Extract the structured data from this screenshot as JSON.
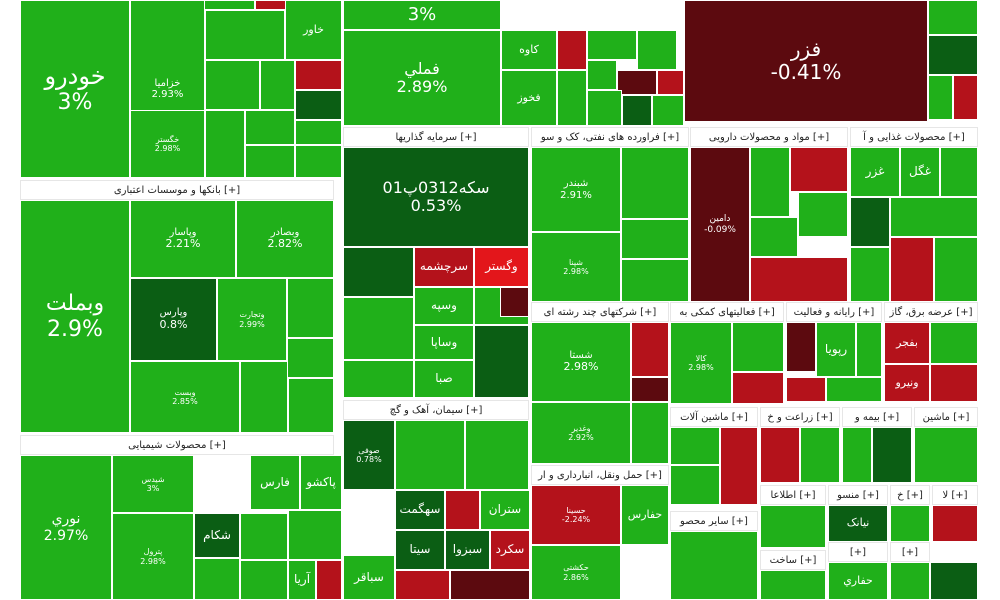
{
  "colors": {
    "bright_green": "#20b01a",
    "mid_green": "#168f17",
    "dark_green": "#0b5e14",
    "bright_red": "#e3161b",
    "mid_red": "#b4121b",
    "dark_red": "#5c0a0f",
    "background": "#ffffff"
  },
  "chart_data": {
    "type": "treemap",
    "sectors": [
      {
        "label": "[+] بانکها و موسسات اعتباری"
      },
      {
        "label": "[+] محصولات شیمیایی"
      },
      {
        "label": "[+] سرمایه گذاریها"
      },
      {
        "label": "[+] سیمان، آهک و گچ"
      },
      {
        "label": "[+] فراورده های نفتی، کک و سو"
      },
      {
        "label": "[+] مواد و محصولات دارویی"
      },
      {
        "label": "[+] محصولات غذایی و آ"
      },
      {
        "label": "[+] شرکتهای چند رشته ای"
      },
      {
        "label": "[+] فعالیتهای کمکی به"
      },
      {
        "label": "[+] رایانه و فعالیت"
      },
      {
        "label": "[+] عرضه برق، گاز"
      },
      {
        "label": "[+] حمل ونقل، انبارداری و ار"
      },
      {
        "label": "[+] ماشین آلات"
      },
      {
        "label": "[+] زراعت و خ"
      },
      {
        "label": "[+] بیمه و"
      },
      {
        "label": "[+] ماشین"
      },
      {
        "label": "[+] ساير محصو"
      },
      {
        "label": "[+] اطلاعا"
      },
      {
        "label": "[+] منسو"
      },
      {
        "label": "[+] خ"
      },
      {
        "label": "[+] لا"
      },
      {
        "label": "[+] ساخت"
      },
      {
        "label": "[+]"
      },
      {
        "label": "[+]"
      }
    ],
    "tiles": [
      {
        "name": "خودرو",
        "value": "3%"
      },
      {
        "name": "خزامیا",
        "value": "2.93%"
      },
      {
        "name": "خاور",
        "value": ""
      },
      {
        "name": "خگستر",
        "value": "2.98%"
      },
      {
        "name": "3%",
        "value": ""
      },
      {
        "name": "فملي",
        "value": "2.89%"
      },
      {
        "name": "کاوه",
        "value": ""
      },
      {
        "name": "فخوز",
        "value": ""
      },
      {
        "name": "فزر",
        "value": "-0.41%"
      },
      {
        "name": "وبملت",
        "value": "2.9%"
      },
      {
        "name": "وپاسار",
        "value": "2.21%"
      },
      {
        "name": "وبصادر",
        "value": "2.82%"
      },
      {
        "name": "وپارس",
        "value": "0.8%"
      },
      {
        "name": "وتجارت",
        "value": "2.99%"
      },
      {
        "name": "وبست",
        "value": "2.85%"
      },
      {
        "name": "نوري",
        "value": "2.97%"
      },
      {
        "name": "شیدس",
        "value": "3%"
      },
      {
        "name": "فارس",
        "value": ""
      },
      {
        "name": "پاکشو",
        "value": ""
      },
      {
        "name": "شکام",
        "value": ""
      },
      {
        "name": "پترول",
        "value": "2.98%"
      },
      {
        "name": "آریا",
        "value": ""
      },
      {
        "name": "سکه0312پ01",
        "value": "0.53%"
      },
      {
        "name": "وگستر",
        "value": ""
      },
      {
        "name": "سرچشمه",
        "value": ""
      },
      {
        "name": "وسپه",
        "value": ""
      },
      {
        "name": "وساپا",
        "value": ""
      },
      {
        "name": "صبا",
        "value": ""
      },
      {
        "name": "صوفی",
        "value": "0.78%"
      },
      {
        "name": "سهگمت",
        "value": ""
      },
      {
        "name": "ستران",
        "value": ""
      },
      {
        "name": "سیتا",
        "value": ""
      },
      {
        "name": "سبزوا",
        "value": ""
      },
      {
        "name": "سکرد",
        "value": ""
      },
      {
        "name": "سباقر",
        "value": ""
      },
      {
        "name": "شبندر",
        "value": "2.91%"
      },
      {
        "name": "شپنا",
        "value": "2.98%"
      },
      {
        "name": "دامین",
        "value": "-0.09%"
      },
      {
        "name": "غگل",
        "value": ""
      },
      {
        "name": "غزر",
        "value": ""
      },
      {
        "name": "شستا",
        "value": "2.98%"
      },
      {
        "name": "وغدیر",
        "value": "2.92%"
      },
      {
        "name": "کالا",
        "value": "2.98%"
      },
      {
        "name": "رپویا",
        "value": ""
      },
      {
        "name": "بفجر",
        "value": ""
      },
      {
        "name": "ونیرو",
        "value": ""
      },
      {
        "name": "حسینا",
        "value": "-2.24%"
      },
      {
        "name": "حفارس",
        "value": ""
      },
      {
        "name": "حکشتی",
        "value": "2.86%"
      },
      {
        "name": "نیانک",
        "value": ""
      },
      {
        "name": "حفاري",
        "value": ""
      }
    ]
  }
}
